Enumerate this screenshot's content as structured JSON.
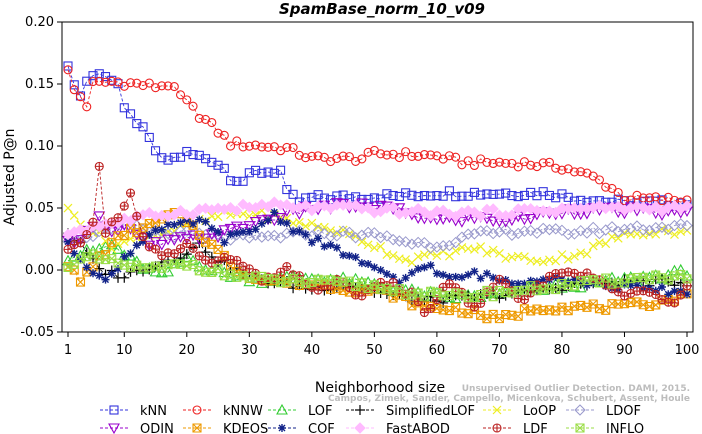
{
  "chart_data": {
    "type": "line",
    "title": "SpamBase_norm_10_v09",
    "xlabel": "Neighborhood size",
    "ylabel": "Adjusted P@n",
    "xlim": [
      1,
      100
    ],
    "ylim": [
      -0.05,
      0.2
    ],
    "xticks": [
      1,
      10,
      20,
      30,
      40,
      50,
      60,
      70,
      80,
      90,
      100
    ],
    "yticks": [
      -0.05,
      0.0,
      0.05,
      0.1,
      0.15,
      0.2
    ],
    "ytick_labels": [
      "-0.05",
      "0.00",
      "0.05",
      "0.10",
      "0.15",
      "0.20"
    ],
    "legend_position": "bottom",
    "credit_line1": "Unsupervised Outlier Detection. DAMI, 2015.",
    "credit_line2": "Campos, Zimek, Sander, Campello, Micenkova, Schubert, Assent, Houle",
    "series": [
      {
        "name": "kNN",
        "color": "#3333dd",
        "marker": "square",
        "knots": [
          [
            1,
            0.162
          ],
          [
            2,
            0.152
          ],
          [
            3,
            0.14
          ],
          [
            4,
            0.153
          ],
          [
            5,
            0.157
          ],
          [
            7,
            0.158
          ],
          [
            9,
            0.15
          ],
          [
            10,
            0.128
          ],
          [
            12,
            0.12
          ],
          [
            14,
            0.105
          ],
          [
            16,
            0.088
          ],
          [
            18,
            0.09
          ],
          [
            20,
            0.094
          ],
          [
            24,
            0.089
          ],
          [
            26,
            0.082
          ],
          [
            27,
            0.075
          ],
          [
            29,
            0.072
          ],
          [
            31,
            0.079
          ],
          [
            35,
            0.08
          ],
          [
            36,
            0.062
          ],
          [
            38,
            0.055
          ],
          [
            40,
            0.058
          ],
          [
            55,
            0.06
          ],
          [
            60,
            0.062
          ],
          [
            78,
            0.062
          ],
          [
            82,
            0.058
          ],
          [
            90,
            0.054
          ],
          [
            100,
            0.054
          ]
        ]
      },
      {
        "name": "kNNW",
        "color": "#ee2222",
        "marker": "circle",
        "knots": [
          [
            1,
            0.16
          ],
          [
            2,
            0.145
          ],
          [
            3,
            0.14
          ],
          [
            4,
            0.133
          ],
          [
            5,
            0.15
          ],
          [
            8,
            0.152
          ],
          [
            12,
            0.15
          ],
          [
            15,
            0.148
          ],
          [
            17,
            0.15
          ],
          [
            19,
            0.14
          ],
          [
            22,
            0.125
          ],
          [
            25,
            0.112
          ],
          [
            27,
            0.102
          ],
          [
            32,
            0.1
          ],
          [
            36,
            0.098
          ],
          [
            40,
            0.09
          ],
          [
            48,
            0.09
          ],
          [
            50,
            0.094
          ],
          [
            60,
            0.092
          ],
          [
            64,
            0.087
          ],
          [
            74,
            0.086
          ],
          [
            80,
            0.083
          ],
          [
            85,
            0.075
          ],
          [
            88,
            0.066
          ],
          [
            90,
            0.058
          ],
          [
            100,
            0.056
          ]
        ]
      },
      {
        "name": "LOF",
        "color": "#33cc33",
        "marker": "triangle",
        "knots": [
          [
            1,
            0.01
          ],
          [
            5,
            0.015
          ],
          [
            8,
            0.02
          ],
          [
            12,
            0.005
          ],
          [
            16,
            -0.005
          ],
          [
            20,
            0.01
          ],
          [
            24,
            0.0
          ],
          [
            28,
            -0.005
          ],
          [
            32,
            -0.008
          ],
          [
            38,
            -0.006
          ],
          [
            44,
            -0.008
          ],
          [
            50,
            -0.012
          ],
          [
            56,
            -0.018
          ],
          [
            62,
            -0.022
          ],
          [
            70,
            -0.02
          ],
          [
            76,
            -0.015
          ],
          [
            82,
            -0.012
          ],
          [
            90,
            -0.008
          ],
          [
            100,
            -0.002
          ]
        ]
      },
      {
        "name": "SimplifiedLOF",
        "color": "#000000",
        "marker": "plus",
        "knots": [
          [
            1,
            0.03
          ],
          [
            3,
            0.02
          ],
          [
            6,
            0.0
          ],
          [
            10,
            -0.005
          ],
          [
            14,
            0.003
          ],
          [
            18,
            0.01
          ],
          [
            22,
            0.02
          ],
          [
            26,
            0.005
          ],
          [
            30,
            -0.005
          ],
          [
            34,
            -0.01
          ],
          [
            40,
            -0.015
          ],
          [
            46,
            -0.012
          ],
          [
            52,
            -0.02
          ],
          [
            58,
            -0.025
          ],
          [
            66,
            -0.022
          ],
          [
            74,
            -0.018
          ],
          [
            82,
            -0.012
          ],
          [
            90,
            -0.01
          ],
          [
            100,
            -0.01
          ]
        ]
      },
      {
        "name": "LoOP",
        "color": "#eeee22",
        "marker": "x",
        "knots": [
          [
            1,
            0.048
          ],
          [
            4,
            0.035
          ],
          [
            8,
            0.02
          ],
          [
            12,
            0.025
          ],
          [
            16,
            0.03
          ],
          [
            20,
            0.035
          ],
          [
            26,
            0.045
          ],
          [
            32,
            0.045
          ],
          [
            38,
            0.038
          ],
          [
            44,
            0.032
          ],
          [
            50,
            0.02
          ],
          [
            55,
            0.008
          ],
          [
            60,
            0.012
          ],
          [
            66,
            0.018
          ],
          [
            72,
            0.01
          ],
          [
            78,
            0.008
          ],
          [
            84,
            0.015
          ],
          [
            88,
            0.025
          ],
          [
            92,
            0.03
          ],
          [
            96,
            0.032
          ],
          [
            100,
            0.03
          ]
        ]
      },
      {
        "name": "LDOF",
        "color": "#9999cc",
        "marker": "diamond",
        "knots": [
          [
            1,
            0.025
          ],
          [
            6,
            0.03
          ],
          [
            10,
            0.035
          ],
          [
            16,
            0.03
          ],
          [
            22,
            0.028
          ],
          [
            30,
            0.025
          ],
          [
            40,
            0.03
          ],
          [
            50,
            0.028
          ],
          [
            56,
            0.022
          ],
          [
            60,
            0.02
          ],
          [
            66,
            0.028
          ],
          [
            74,
            0.032
          ],
          [
            80,
            0.03
          ],
          [
            86,
            0.032
          ],
          [
            92,
            0.034
          ],
          [
            100,
            0.035
          ]
        ]
      },
      {
        "name": "ODIN",
        "color": "#9900cc",
        "marker": "triangle-down",
        "knots": [
          [
            1,
            0.022
          ],
          [
            4,
            0.03
          ],
          [
            6,
            0.045
          ],
          [
            8,
            0.03
          ],
          [
            10,
            0.035
          ],
          [
            14,
            0.02
          ],
          [
            20,
            0.025
          ],
          [
            26,
            0.03
          ],
          [
            32,
            0.04
          ],
          [
            36,
            0.045
          ],
          [
            40,
            0.05
          ],
          [
            46,
            0.052
          ],
          [
            52,
            0.05
          ],
          [
            56,
            0.045
          ],
          [
            60,
            0.04
          ],
          [
            66,
            0.042
          ],
          [
            72,
            0.04
          ],
          [
            80,
            0.048
          ],
          [
            90,
            0.048
          ],
          [
            100,
            0.046
          ]
        ]
      },
      {
        "name": "KDEOS",
        "color": "#ee9900",
        "marker": "square-x",
        "knots": [
          [
            1,
            0.005
          ],
          [
            3,
            -0.01
          ],
          [
            6,
            0.01
          ],
          [
            10,
            0.03
          ],
          [
            14,
            0.035
          ],
          [
            18,
            0.045
          ],
          [
            20,
            0.04
          ],
          [
            24,
            0.02
          ],
          [
            28,
            0.0
          ],
          [
            32,
            -0.008
          ],
          [
            38,
            -0.01
          ],
          [
            46,
            -0.015
          ],
          [
            52,
            -0.018
          ],
          [
            58,
            -0.03
          ],
          [
            64,
            -0.032
          ],
          [
            70,
            -0.04
          ],
          [
            76,
            -0.03
          ],
          [
            82,
            -0.03
          ],
          [
            90,
            -0.03
          ],
          [
            96,
            -0.025
          ],
          [
            100,
            -0.02
          ]
        ]
      },
      {
        "name": "COF",
        "color": "#112288",
        "marker": "star",
        "knots": [
          [
            1,
            0.02
          ],
          [
            4,
            0.005
          ],
          [
            7,
            -0.01
          ],
          [
            10,
            0.01
          ],
          [
            14,
            0.03
          ],
          [
            18,
            0.035
          ],
          [
            22,
            0.04
          ],
          [
            26,
            0.025
          ],
          [
            30,
            0.03
          ],
          [
            34,
            0.045
          ],
          [
            38,
            0.03
          ],
          [
            42,
            0.02
          ],
          [
            46,
            0.012
          ],
          [
            50,
            0.0
          ],
          [
            54,
            -0.01
          ],
          [
            58,
            0.005
          ],
          [
            62,
            -0.008
          ],
          [
            66,
            -0.003
          ],
          [
            72,
            -0.01
          ],
          [
            78,
            -0.005
          ],
          [
            86,
            -0.012
          ],
          [
            92,
            -0.015
          ],
          [
            100,
            -0.018
          ]
        ]
      },
      {
        "name": "FastABOD",
        "color": "#ffbbff",
        "marker": "diamond-filled",
        "knots": [
          [
            1,
            0.03
          ],
          [
            5,
            0.035
          ],
          [
            10,
            0.04
          ],
          [
            16,
            0.045
          ],
          [
            22,
            0.048
          ],
          [
            28,
            0.05
          ],
          [
            34,
            0.052
          ],
          [
            40,
            0.05
          ],
          [
            46,
            0.05
          ],
          [
            52,
            0.048
          ],
          [
            60,
            0.046
          ],
          [
            68,
            0.046
          ],
          [
            76,
            0.048
          ],
          [
            84,
            0.05
          ],
          [
            92,
            0.05
          ],
          [
            100,
            0.05
          ]
        ]
      },
      {
        "name": "LDF",
        "color": "#bb2222",
        "marker": "circle-plus",
        "knots": [
          [
            1,
            0.015
          ],
          [
            3,
            0.02
          ],
          [
            5,
            0.04
          ],
          [
            6,
            0.082
          ],
          [
            7,
            0.03
          ],
          [
            9,
            0.045
          ],
          [
            11,
            0.06
          ],
          [
            13,
            0.025
          ],
          [
            16,
            0.01
          ],
          [
            20,
            0.02
          ],
          [
            24,
            0.005
          ],
          [
            28,
            0.01
          ],
          [
            32,
            -0.01
          ],
          [
            36,
            0.0
          ],
          [
            40,
            -0.015
          ],
          [
            44,
            -0.01
          ],
          [
            48,
            -0.02
          ],
          [
            52,
            -0.01
          ],
          [
            56,
            -0.02
          ],
          [
            58,
            -0.035
          ],
          [
            62,
            -0.01
          ],
          [
            66,
            -0.03
          ],
          [
            70,
            -0.01
          ],
          [
            74,
            -0.025
          ],
          [
            78,
            -0.005
          ],
          [
            82,
            0.0
          ],
          [
            86,
            -0.01
          ],
          [
            90,
            -0.02
          ],
          [
            94,
            -0.018
          ],
          [
            98,
            -0.025
          ],
          [
            100,
            -0.01
          ]
        ]
      },
      {
        "name": "INFLO",
        "color": "#99dd44",
        "marker": "square-x2",
        "knots": [
          [
            1,
            0.005
          ],
          [
            5,
            0.01
          ],
          [
            9,
            0.005
          ],
          [
            14,
            0.0
          ],
          [
            20,
            0.005
          ],
          [
            26,
            -0.003
          ],
          [
            32,
            -0.008
          ],
          [
            40,
            -0.01
          ],
          [
            48,
            -0.012
          ],
          [
            56,
            -0.018
          ],
          [
            62,
            -0.022
          ],
          [
            70,
            -0.018
          ],
          [
            78,
            -0.014
          ],
          [
            86,
            -0.01
          ],
          [
            94,
            -0.006
          ],
          [
            100,
            -0.005
          ]
        ]
      }
    ]
  }
}
